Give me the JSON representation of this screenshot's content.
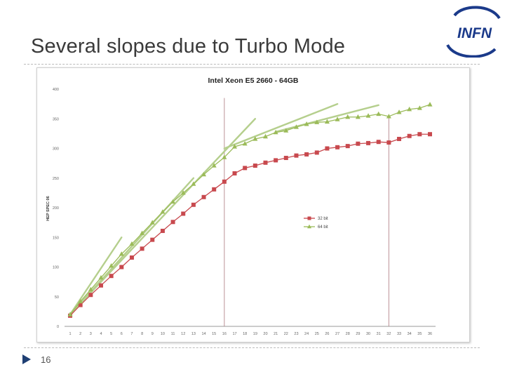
{
  "slide": {
    "title": "Several slopes due to Turbo Mode",
    "page_number": "16",
    "logo_text": "INFN"
  },
  "colors": {
    "series_32": "#c8494e",
    "series_64": "#9bbb59",
    "trend": "#b5cf8d",
    "marker_line": "#b4868b",
    "grid_text": "#666666"
  },
  "chart_data": {
    "type": "line",
    "title": "Intel Xeon E5 2660 - 64GB",
    "xlabel": "",
    "ylabel": "HEP SPEC 06",
    "ylim": [
      0,
      400
    ],
    "yticks": [
      "0",
      "50",
      "100",
      "150",
      "200",
      "250",
      "300",
      "350",
      "400"
    ],
    "x": [
      1,
      2,
      3,
      4,
      5,
      6,
      7,
      8,
      9,
      10,
      11,
      12,
      13,
      14,
      15,
      16,
      17,
      18,
      19,
      20,
      21,
      22,
      23,
      24,
      25,
      26,
      27,
      28,
      29,
      30,
      31,
      32,
      33,
      34,
      35,
      36
    ],
    "series": [
      {
        "name": "32 bit",
        "color_key": "series_32",
        "marker": "square",
        "values": [
          18,
          36,
          53,
          69,
          85,
          100,
          116,
          131,
          146,
          161,
          176,
          190,
          205,
          218,
          231,
          244,
          258,
          267,
          271,
          276,
          280,
          284,
          288,
          290,
          293,
          300,
          302,
          304,
          308,
          309,
          311,
          310,
          316,
          321,
          324,
          324
        ]
      },
      {
        "name": "64 bit",
        "color_key": "series_64",
        "marker": "triangle",
        "values": [
          20,
          42,
          62,
          82,
          102,
          122,
          139,
          157,
          175,
          193,
          210,
          225,
          240,
          256,
          271,
          285,
          303,
          308,
          316,
          320,
          327,
          330,
          336,
          341,
          344,
          345,
          349,
          353,
          353,
          355,
          358,
          354,
          361,
          366,
          368,
          374
        ]
      }
    ],
    "trend_lines": [
      {
        "x": [
          1,
          6
        ],
        "y": [
          20,
          150
        ]
      },
      {
        "x": [
          1,
          13
        ],
        "y": [
          20,
          250
        ]
      },
      {
        "x": [
          1,
          19
        ],
        "y": [
          20,
          350
        ]
      },
      {
        "x": [
          16,
          27
        ],
        "y": [
          300,
          375
        ]
      },
      {
        "x": [
          21,
          31
        ],
        "y": [
          328,
          373
        ]
      }
    ],
    "vertical_markers": [
      {
        "x": 16,
        "y": [
          0,
          385
        ]
      },
      {
        "x": 32,
        "y": [
          0,
          355
        ]
      }
    ],
    "legend": {
      "position": "middle-right"
    }
  }
}
